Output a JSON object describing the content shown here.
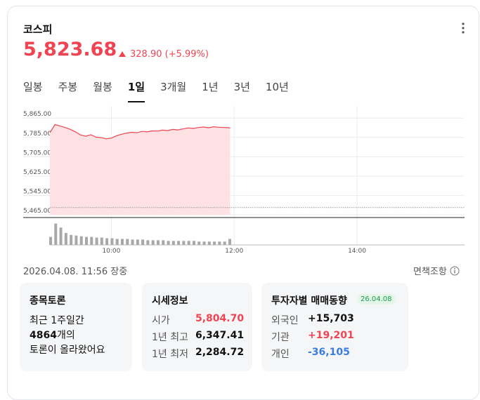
{
  "header": {
    "title": "코스피",
    "price": "5,823.68",
    "change": "328.90",
    "change_pct": "(+5.99%)"
  },
  "tabs": [
    "일봉",
    "주봉",
    "월봉",
    "1일",
    "3개월",
    "1년",
    "3년",
    "10년"
  ],
  "selected_tab": 3,
  "chart_data": {
    "type": "line",
    "x": [
      "09:00",
      "09:05",
      "09:10",
      "09:15",
      "09:20",
      "09:25",
      "09:30",
      "09:35",
      "09:40",
      "09:45",
      "09:50",
      "09:55",
      "10:00",
      "10:05",
      "10:10",
      "10:15",
      "10:20",
      "10:25",
      "10:30",
      "10:35",
      "10:40",
      "10:45",
      "10:50",
      "10:55",
      "11:00",
      "11:05",
      "11:10",
      "11:15",
      "11:20",
      "11:25",
      "11:30",
      "11:35",
      "11:40",
      "11:45",
      "11:50",
      "11:55",
      "11:56"
    ],
    "series": [
      {
        "color": "#f04452",
        "fill": "#fde1e3",
        "values": [
          5804.7,
          5838,
          5832,
          5826,
          5818,
          5808,
          5795,
          5790,
          5796,
          5786,
          5784,
          5779,
          5782,
          5792,
          5798,
          5803,
          5806,
          5804,
          5810,
          5808,
          5812,
          5811,
          5815,
          5813,
          5818,
          5816,
          5820,
          5824,
          5822,
          5826,
          5828,
          5825,
          5829,
          5827,
          5826,
          5825,
          5823.68
        ]
      }
    ],
    "reference": 5494.78,
    "xlim": [
      "09:00",
      "15:45"
    ],
    "xticks": [
      "10:00",
      "12:00",
      "14:00"
    ],
    "ylim": [
      5465,
      5915
    ],
    "yticks": [
      {
        "value": 5865,
        "label": "5,865.00"
      },
      {
        "value": 5785,
        "label": "5,785.00"
      },
      {
        "value": 5705,
        "label": "5,705.00"
      },
      {
        "value": 5625,
        "label": "5,625.00"
      },
      {
        "value": 5545,
        "label": "5,545.00"
      },
      {
        "value": 5465,
        "label": "5,465.00"
      }
    ],
    "grid": true,
    "volume": {
      "color": "#a8a8a8",
      "x": [
        "09:00",
        "09:05",
        "09:10",
        "09:15",
        "09:20",
        "09:25",
        "09:30",
        "09:35",
        "09:40",
        "09:45",
        "09:50",
        "09:55",
        "10:00",
        "10:05",
        "10:10",
        "10:15",
        "10:20",
        "10:25",
        "10:30",
        "10:35",
        "10:40",
        "10:45",
        "10:50",
        "10:55",
        "11:00",
        "11:05",
        "11:10",
        "11:15",
        "11:20",
        "11:25",
        "11:30",
        "11:35",
        "11:40",
        "11:45",
        "11:50",
        "11:55"
      ],
      "values": [
        12,
        32,
        26,
        18,
        15,
        14,
        13,
        12,
        12,
        11,
        11,
        10,
        10,
        9,
        9,
        9,
        8,
        8,
        8,
        7,
        7,
        7,
        7,
        6,
        6,
        6,
        6,
        6,
        6,
        5,
        5,
        5,
        5,
        5,
        5,
        9
      ],
      "ylim": [
        0,
        40
      ]
    }
  },
  "timestamp": "2026.04.08. 11:56 장중",
  "disclaimer": "면책조항",
  "cards": [
    {
      "title": "종목토론",
      "line1": "최근 1주일간",
      "count": "4864",
      "count_suffix": "개의",
      "line3": "토론이 올라왔어요"
    },
    {
      "title": "시세정보",
      "rows": [
        {
          "label": "시가",
          "value": "5,804.70",
          "color": "#f04452"
        },
        {
          "label": "1년 최고",
          "value": "6,347.41",
          "color": "#111111"
        },
        {
          "label": "1년 최저",
          "value": "2,284.72",
          "color": "#111111"
        }
      ]
    },
    {
      "title": "투자자별 매매동향",
      "badge": "26.04.08",
      "rows": [
        {
          "label": "외국인",
          "value": "+15,703",
          "color": "#111111"
        },
        {
          "label": "기관",
          "value": "+19,201",
          "color": "#f04452"
        },
        {
          "label": "개인",
          "value": "-36,105",
          "color": "#3b7ddd"
        }
      ]
    }
  ]
}
